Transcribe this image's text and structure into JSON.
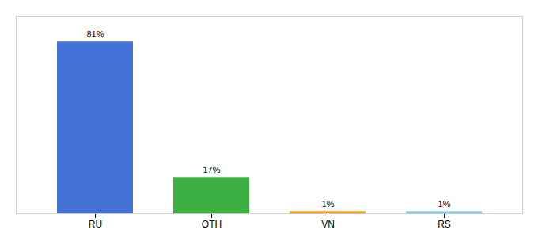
{
  "chart_data": {
    "type": "bar",
    "categories": [
      "RU",
      "OTH",
      "VN",
      "RS"
    ],
    "values": [
      81,
      17,
      1,
      1
    ],
    "value_labels": [
      "81%",
      "17%",
      "1%",
      "1%"
    ],
    "colors": [
      "#4472d4",
      "#3cb043",
      "#f5a623",
      "#87ceeb"
    ],
    "ylim": [
      0,
      93
    ],
    "data_labels": true,
    "tick_labels": "x",
    "grid": false
  }
}
